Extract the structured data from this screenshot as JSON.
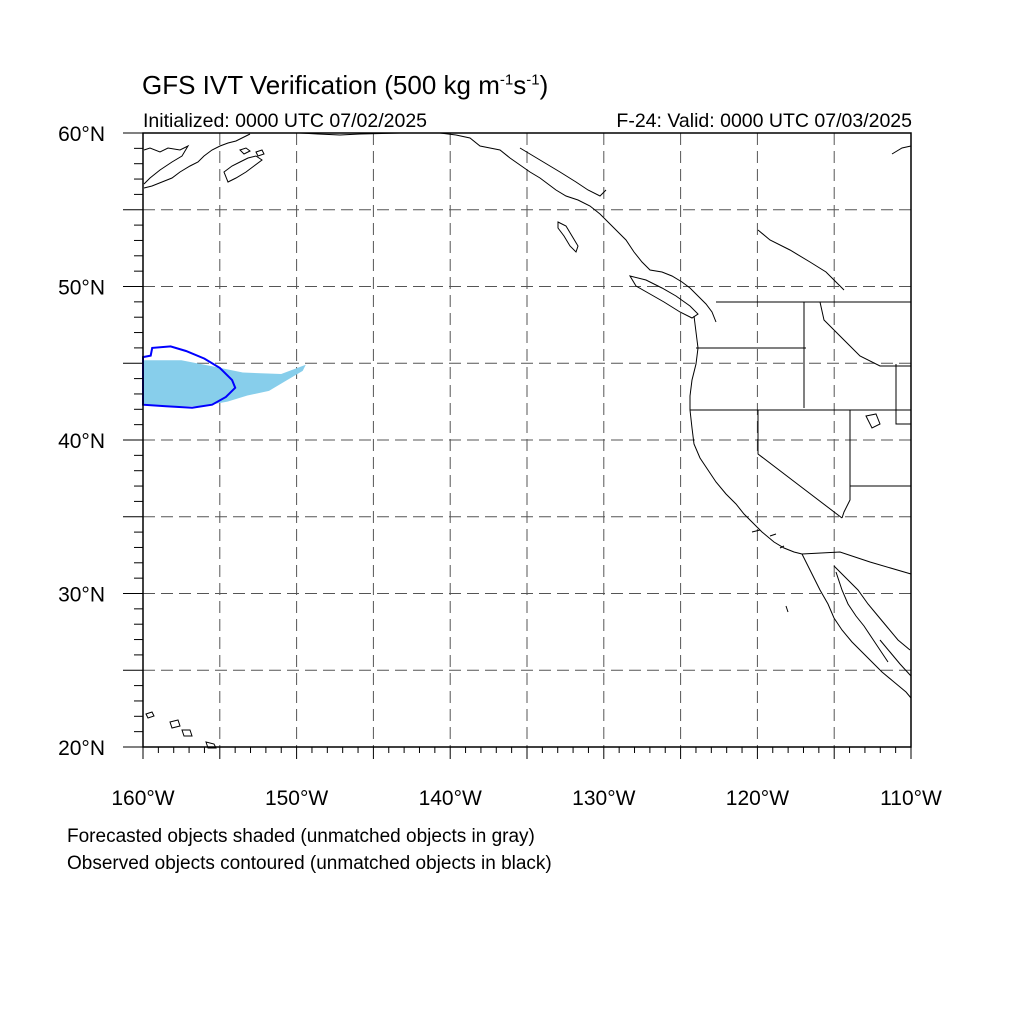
{
  "header": {
    "title_main": "GFS IVT Verification (500 kg m",
    "title_exp1": "-1",
    "title_mid": "s",
    "title_exp2": "-1",
    "title_end": ")",
    "initialized": "Initialized: 0000 UTC 07/02/2025",
    "valid": "F-24: Valid: 0000 UTC 07/03/2025"
  },
  "map": {
    "lon_range": [
      -160,
      -110
    ],
    "lat_range": [
      20,
      60
    ],
    "gridlines": "dashed every 5 degrees",
    "x_tick_labels": [
      {
        "lon": -160,
        "label": "160°W"
      },
      {
        "lon": -150,
        "label": "150°W"
      },
      {
        "lon": -140,
        "label": "140°W"
      },
      {
        "lon": -130,
        "label": "130°W"
      },
      {
        "lon": -120,
        "label": "120°W"
      },
      {
        "lon": -110,
        "label": "110°W"
      }
    ],
    "y_tick_labels": [
      {
        "lat": 60,
        "label": "60°N"
      },
      {
        "lat": 50,
        "label": "50°N"
      },
      {
        "lat": 40,
        "label": "40°N"
      },
      {
        "lat": 30,
        "label": "30°N"
      },
      {
        "lat": 20,
        "label": "20°N"
      }
    ],
    "colors": {
      "forecast_fill": "#87ceeb",
      "observed_contour": "#0000ff",
      "coastline": "#000000",
      "grid": "#555555"
    },
    "forecast_object_lonlat": [
      [
        -160,
        45.2
      ],
      [
        -157.5,
        45.2
      ],
      [
        -155.5,
        44.8
      ],
      [
        -153.5,
        44.4
      ],
      [
        -151,
        44.3
      ],
      [
        -149.4,
        44.9
      ],
      [
        -149.6,
        44.5
      ],
      [
        -150.8,
        43.8
      ],
      [
        -151.8,
        43.2
      ],
      [
        -153.2,
        42.9
      ],
      [
        -154.5,
        42.5
      ],
      [
        -156.2,
        42.2
      ],
      [
        -158.5,
        42.2
      ],
      [
        -160,
        42.3
      ]
    ],
    "observed_object_lonlat": [
      [
        -160,
        45.4
      ],
      [
        -159.5,
        45.5
      ],
      [
        -159.4,
        46.0
      ],
      [
        -158.2,
        46.1
      ],
      [
        -157.2,
        45.8
      ],
      [
        -156.0,
        45.3
      ],
      [
        -155.0,
        44.7
      ],
      [
        -154.2,
        43.9
      ],
      [
        -154.0,
        43.4
      ],
      [
        -154.6,
        42.8
      ],
      [
        -155.5,
        42.3
      ],
      [
        -156.8,
        42.1
      ],
      [
        -158.5,
        42.2
      ],
      [
        -160,
        42.3
      ]
    ]
  },
  "footer": {
    "note1": "Forecasted objects shaded (unmatched objects in gray)",
    "note2": "Observed objects contoured (unmatched objects in black)"
  }
}
